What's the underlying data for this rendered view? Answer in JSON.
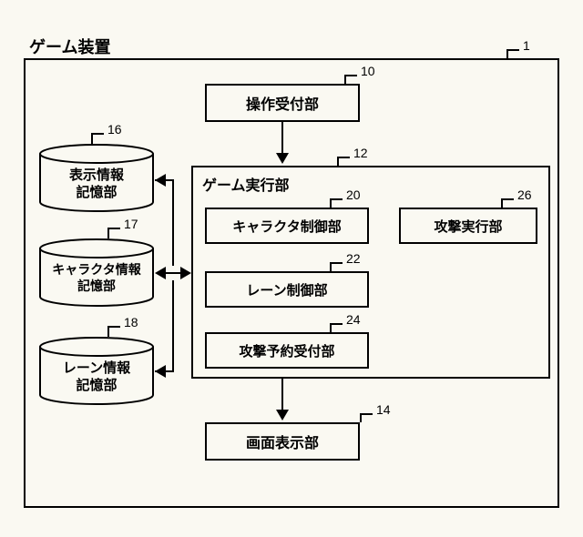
{
  "outer": {
    "title": "ゲーム装置",
    "ref": "1"
  },
  "nodes": {
    "op": {
      "label": "操作受付部",
      "ref": "10"
    },
    "exec": {
      "title": "ゲーム実行部",
      "ref": "12"
    },
    "char": {
      "label": "キャラクタ制御部",
      "ref": "20"
    },
    "lane": {
      "label": "レーン制御部",
      "ref": "22"
    },
    "res": {
      "label": "攻撃予約受付部",
      "ref": "24"
    },
    "atk": {
      "label": "攻撃実行部",
      "ref": "26"
    },
    "disp": {
      "label": "画面表示部",
      "ref": "14"
    }
  },
  "cyls": {
    "d1": {
      "label": "表示情報\n記憶部",
      "ref": "16"
    },
    "d2": {
      "label": "キャラクタ情報\n記憶部",
      "ref": "17"
    },
    "d3": {
      "label": "レーン情報\n記憶部",
      "ref": "18"
    }
  },
  "style": {
    "bg": "#faf9f2",
    "stroke": "#000000",
    "font": "sans-serif",
    "box_font_size": 16,
    "ref_font_size": 14
  }
}
